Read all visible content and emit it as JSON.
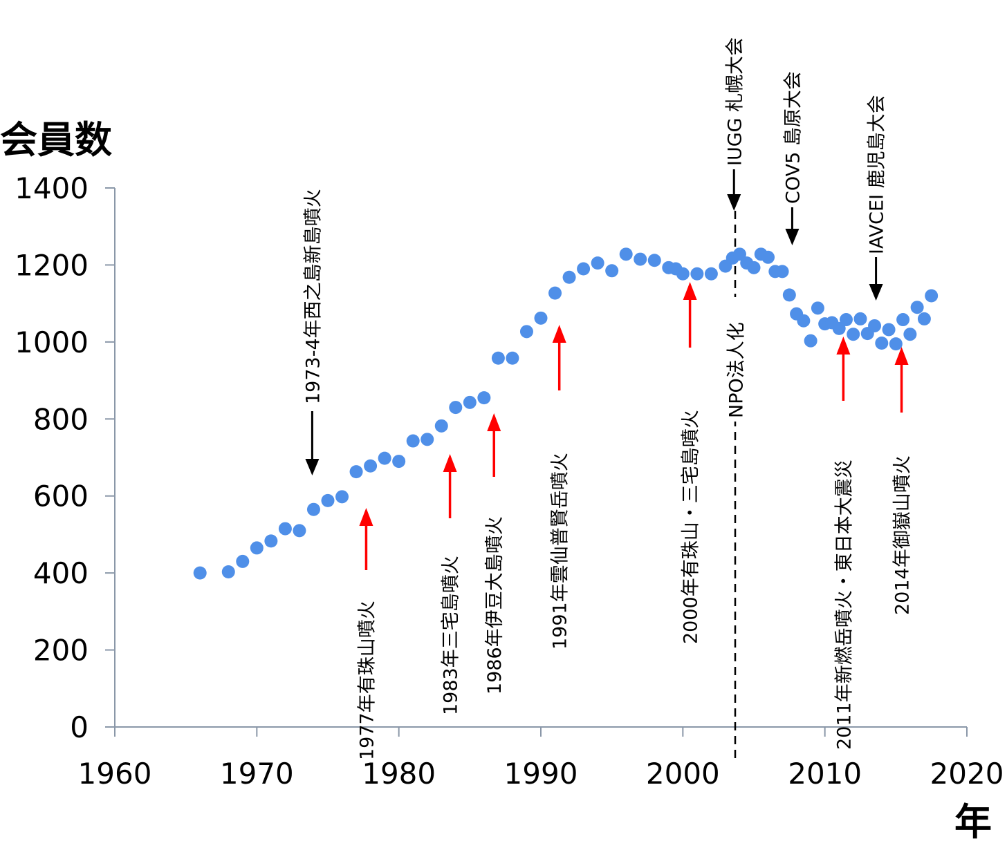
{
  "chart_data": {
    "type": "scatter",
    "ylabel": "会員数",
    "xlabel": "年",
    "xlim": [
      1960,
      2020
    ],
    "ylim": [
      0,
      1400
    ],
    "x_ticks": [
      "1960",
      "1970",
      "1980",
      "1990",
      "2000",
      "2010",
      "2020"
    ],
    "y_ticks": [
      "0",
      "200",
      "400",
      "600",
      "800",
      "1000",
      "1200",
      "1400"
    ],
    "grid": false,
    "series": [
      {
        "color": "#4f8fe8",
        "points": [
          [
            1966,
            400
          ],
          [
            1968,
            403
          ],
          [
            1969,
            430
          ],
          [
            1970,
            465
          ],
          [
            1971,
            483
          ],
          [
            1972,
            515
          ],
          [
            1973,
            510
          ],
          [
            1974,
            565
          ],
          [
            1975,
            588
          ],
          [
            1976,
            598
          ],
          [
            1977,
            663
          ],
          [
            1978,
            678
          ],
          [
            1979,
            698
          ],
          [
            1980,
            690
          ],
          [
            1981,
            743
          ],
          [
            1982,
            747
          ],
          [
            1983,
            782
          ],
          [
            1984,
            830
          ],
          [
            1985,
            843
          ],
          [
            1986,
            855
          ],
          [
            1987,
            958
          ],
          [
            1988,
            958
          ],
          [
            1989,
            1027
          ],
          [
            1990,
            1062
          ],
          [
            1991,
            1127
          ],
          [
            1992,
            1168
          ],
          [
            1993,
            1190
          ],
          [
            1994,
            1205
          ],
          [
            1995,
            1185
          ],
          [
            1996,
            1228
          ],
          [
            1997,
            1215
          ],
          [
            1998,
            1212
          ],
          [
            1999,
            1193
          ],
          [
            1999.5,
            1190
          ],
          [
            2000,
            1177
          ],
          [
            2001,
            1177
          ],
          [
            2002,
            1177
          ],
          [
            2003,
            1197
          ],
          [
            2003.5,
            1218
          ],
          [
            2004,
            1228
          ],
          [
            2004.5,
            1205
          ],
          [
            2005,
            1193
          ],
          [
            2005.5,
            1228
          ],
          [
            2006,
            1220
          ],
          [
            2006.5,
            1183
          ],
          [
            2007,
            1183
          ],
          [
            2007.5,
            1122
          ],
          [
            2008,
            1073
          ],
          [
            2008.5,
            1055
          ],
          [
            2009,
            1003
          ],
          [
            2009.5,
            1088
          ],
          [
            2010,
            1047
          ],
          [
            2010.5,
            1050
          ],
          [
            2011,
            1035
          ],
          [
            2011.5,
            1058
          ],
          [
            2012,
            1020
          ],
          [
            2012.5,
            1060
          ],
          [
            2013,
            1022
          ],
          [
            2013.5,
            1042
          ],
          [
            2014,
            997
          ],
          [
            2014.5,
            1032
          ],
          [
            2015,
            995
          ],
          [
            2015.5,
            1058
          ],
          [
            2016,
            1020
          ],
          [
            2016.5,
            1090
          ],
          [
            2017,
            1060
          ],
          [
            2017.5,
            1120
          ]
        ]
      }
    ],
    "annotations": {
      "red_events": [
        {
          "id": "e1977",
          "text": "1977年有珠山噴火",
          "year": 1977.7
        },
        {
          "id": "e1983",
          "text": "1983年三宅島噴火",
          "year": 1983.6
        },
        {
          "id": "e1986",
          "text": "1986年伊豆大島噴火",
          "year": 1986.7
        },
        {
          "id": "e1991",
          "text": "1991年雲仙普賢岳噴火",
          "year": 1991.3
        },
        {
          "id": "e2000",
          "text": "2000年有珠山・三宅島噴火",
          "year": 2000.5
        },
        {
          "id": "e2011",
          "text": "2011年新燃岳噴火・東日本大震災",
          "year": 2011.3
        },
        {
          "id": "e2014",
          "text": "2014年御嶽山噴火",
          "year": 2015.4
        }
      ],
      "black_events": [
        {
          "id": "e1973",
          "text": "1973-4年西之島新島噴火",
          "year": 1973.9
        },
        {
          "id": "iugg",
          "text": "IUGG 札幌大会",
          "year": 2003.6
        },
        {
          "id": "cov5",
          "text": "COV5 島原大会",
          "year": 2007.7
        },
        {
          "id": "iavcei",
          "text": "IAVCEI 鹿児島大会",
          "year": 2013.6
        }
      ],
      "npo": {
        "text": "NPO法人化",
        "year": 2003.7
      }
    }
  }
}
